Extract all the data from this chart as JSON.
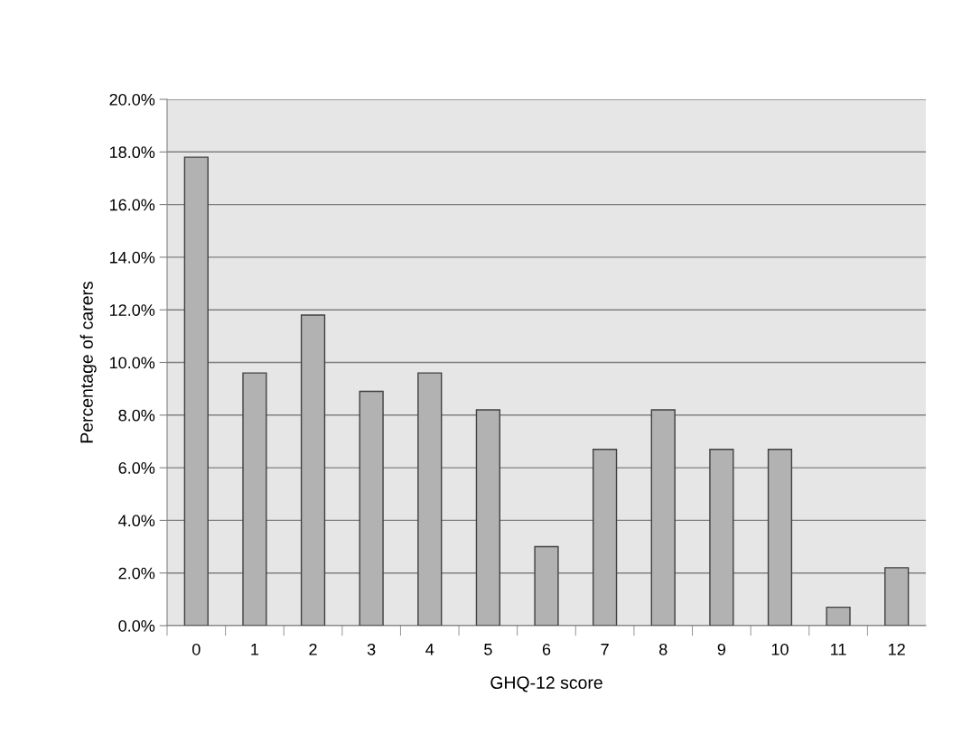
{
  "chart_data": {
    "type": "bar",
    "xlabel": "GHQ-12 score",
    "ylabel": "Percentage of carers",
    "categories": [
      "0",
      "1",
      "2",
      "3",
      "4",
      "5",
      "6",
      "7",
      "8",
      "9",
      "10",
      "11",
      "12"
    ],
    "values": [
      17.8,
      9.6,
      11.8,
      8.9,
      9.6,
      8.2,
      3.0,
      6.7,
      8.2,
      6.7,
      6.7,
      0.7,
      2.2
    ],
    "color": "#b2b2b2",
    "ylim": [
      0,
      20
    ],
    "yticks": [
      {
        "value": 0,
        "label": "0.0%"
      },
      {
        "value": 2,
        "label": "2.0%"
      },
      {
        "value": 4,
        "label": "4.0%"
      },
      {
        "value": 6,
        "label": "6.0%"
      },
      {
        "value": 8,
        "label": "8.0%"
      },
      {
        "value": 10,
        "label": "10.0%"
      },
      {
        "value": 12,
        "label": "12.0%"
      },
      {
        "value": 14,
        "label": "14.0%"
      },
      {
        "value": 16,
        "label": "16.0%"
      },
      {
        "value": 18,
        "label": "18.0%"
      },
      {
        "value": 20,
        "label": "20.0%"
      }
    ],
    "grid": "y",
    "legend": false
  }
}
